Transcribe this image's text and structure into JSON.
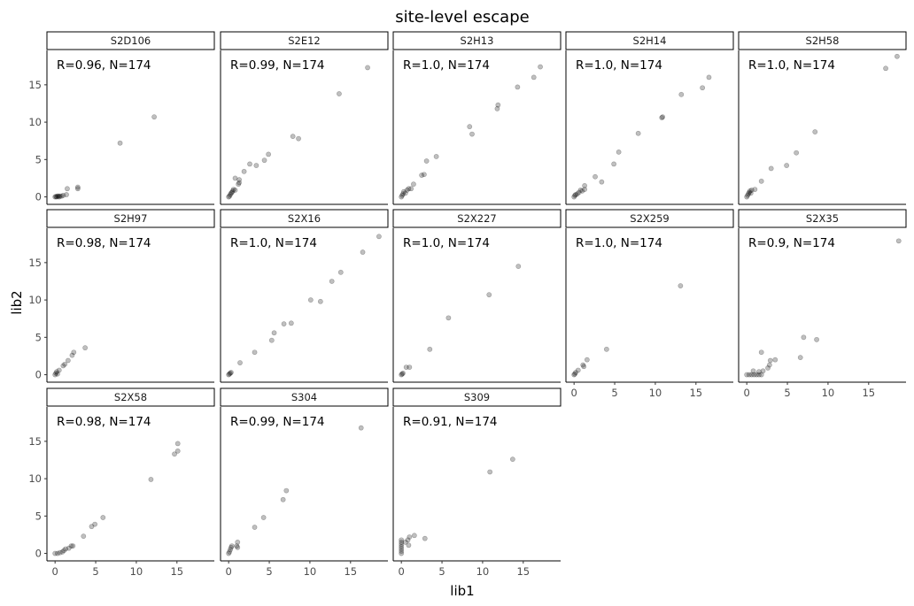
{
  "chart_data": {
    "type": "scatter",
    "title": "site-level escape",
    "xlabel": "lib1",
    "ylabel": "lib2",
    "xlim": [
      -1,
      19.6
    ],
    "ylim": [
      -1,
      19.6
    ],
    "xticks": [
      0,
      5,
      10,
      15
    ],
    "yticks": [
      0,
      5,
      10,
      15
    ],
    "grid": false,
    "legend": "none",
    "point_color": "#000000",
    "point_opacity": 0.25,
    "panels": [
      {
        "name": "S2D106",
        "annotation": "R=0.96, N=174",
        "points": [
          [
            0,
            0
          ],
          [
            0.2,
            0
          ],
          [
            0.4,
            0.1
          ],
          [
            0.6,
            0.1
          ],
          [
            0.8,
            0.1
          ],
          [
            1.0,
            0.2
          ],
          [
            0.3,
            0.1
          ],
          [
            0.5,
            0
          ],
          [
            0.1,
            0.05
          ],
          [
            1.4,
            0.3
          ],
          [
            1.5,
            1.1
          ],
          [
            2.8,
            1.1
          ],
          [
            2.8,
            1.3
          ],
          [
            8.0,
            7.2
          ],
          [
            12.2,
            10.7
          ]
        ]
      },
      {
        "name": "S2E12",
        "annotation": "R=0.99, N=174",
        "points": [
          [
            0,
            0
          ],
          [
            0.1,
            0.1
          ],
          [
            0.2,
            0.3
          ],
          [
            0.3,
            0.5
          ],
          [
            0.4,
            0.6
          ],
          [
            0.5,
            0.8
          ],
          [
            0.6,
            1.0
          ],
          [
            0.8,
            0.9
          ],
          [
            0.8,
            2.5
          ],
          [
            1.3,
            2.3
          ],
          [
            1.3,
            1.9
          ],
          [
            1.2,
            1.7
          ],
          [
            1.9,
            3.4
          ],
          [
            2.6,
            4.4
          ],
          [
            3.4,
            4.2
          ],
          [
            4.4,
            4.9
          ],
          [
            4.9,
            5.7
          ],
          [
            7.9,
            8.1
          ],
          [
            8.6,
            7.8
          ],
          [
            13.6,
            13.8
          ],
          [
            17.1,
            17.3
          ]
        ]
      },
      {
        "name": "S2H13",
        "annotation": "R=1.0, N=174",
        "points": [
          [
            0,
            0
          ],
          [
            0.1,
            0.2
          ],
          [
            0.2,
            0.4
          ],
          [
            0.3,
            0.7
          ],
          [
            0.5,
            0.5
          ],
          [
            0.7,
            0.9
          ],
          [
            0.9,
            1.1
          ],
          [
            1.2,
            1.1
          ],
          [
            1.5,
            1.7
          ],
          [
            2.5,
            2.9
          ],
          [
            2.8,
            3.0
          ],
          [
            3.1,
            4.8
          ],
          [
            4.3,
            5.4
          ],
          [
            8.4,
            9.4
          ],
          [
            8.7,
            8.4
          ],
          [
            11.8,
            11.8
          ],
          [
            11.9,
            12.3
          ],
          [
            14.3,
            14.7
          ],
          [
            16.3,
            16.0
          ],
          [
            17.1,
            17.4
          ]
        ]
      },
      {
        "name": "S2H14",
        "annotation": "R=1.0, N=174",
        "points": [
          [
            0,
            0
          ],
          [
            0.1,
            0.2
          ],
          [
            0.2,
            0.3
          ],
          [
            0.4,
            0.4
          ],
          [
            0.6,
            0.6
          ],
          [
            0.8,
            0.9
          ],
          [
            1.0,
            0.8
          ],
          [
            1.3,
            1.0
          ],
          [
            1.3,
            1.5
          ],
          [
            2.6,
            2.7
          ],
          [
            3.4,
            2.0
          ],
          [
            4.9,
            4.4
          ],
          [
            5.5,
            6.0
          ],
          [
            7.9,
            8.5
          ],
          [
            10.8,
            10.6
          ],
          [
            10.9,
            10.7
          ],
          [
            13.2,
            13.7
          ],
          [
            15.8,
            14.6
          ],
          [
            16.6,
            16.0
          ]
        ]
      },
      {
        "name": "S2H58",
        "annotation": "R=1.0, N=174",
        "points": [
          [
            0,
            0
          ],
          [
            0.1,
            0.2
          ],
          [
            0.2,
            0.4
          ],
          [
            0.3,
            0.6
          ],
          [
            0.4,
            0.8
          ],
          [
            0.5,
            0.5
          ],
          [
            0.6,
            0.9
          ],
          [
            1.0,
            1.0
          ],
          [
            1.8,
            2.1
          ],
          [
            3.0,
            3.8
          ],
          [
            4.9,
            4.2
          ],
          [
            6.1,
            5.9
          ],
          [
            8.4,
            8.7
          ],
          [
            17.1,
            17.2
          ],
          [
            18.5,
            18.8
          ]
        ]
      },
      {
        "name": "S2H97",
        "annotation": "R=0.98, N=174",
        "points": [
          [
            0,
            0
          ],
          [
            0.1,
            0.2
          ],
          [
            0.2,
            0.4
          ],
          [
            0.3,
            0.1
          ],
          [
            0.5,
            0.6
          ],
          [
            1.0,
            1.2
          ],
          [
            1.2,
            1.4
          ],
          [
            1.6,
            1.9
          ],
          [
            2.1,
            2.6
          ],
          [
            2.3,
            3.0
          ],
          [
            3.7,
            3.6
          ]
        ]
      },
      {
        "name": "S2X16",
        "annotation": "R=1.0, N=174",
        "points": [
          [
            0,
            0
          ],
          [
            0.1,
            0.1
          ],
          [
            0.2,
            0.2
          ],
          [
            0.3,
            0.3
          ],
          [
            1.4,
            1.6
          ],
          [
            3.2,
            3.0
          ],
          [
            5.3,
            4.6
          ],
          [
            5.6,
            5.6
          ],
          [
            6.8,
            6.8
          ],
          [
            7.7,
            6.9
          ],
          [
            10.1,
            10.0
          ],
          [
            11.3,
            9.8
          ],
          [
            12.7,
            12.5
          ],
          [
            13.8,
            13.7
          ],
          [
            16.5,
            16.4
          ],
          [
            18.5,
            18.5
          ]
        ]
      },
      {
        "name": "S2X227",
        "annotation": "R=1.0, N=174",
        "points": [
          [
            0,
            0
          ],
          [
            0.1,
            0.1
          ],
          [
            0.2,
            0.2
          ],
          [
            0.6,
            1.0
          ],
          [
            1.0,
            1.0
          ],
          [
            3.5,
            3.4
          ],
          [
            5.8,
            7.6
          ],
          [
            10.8,
            10.7
          ],
          [
            14.4,
            14.5
          ]
        ]
      },
      {
        "name": "S2X259",
        "annotation": "R=1.0, N=174",
        "points": [
          [
            0,
            0
          ],
          [
            0.1,
            0.1
          ],
          [
            0.2,
            0.3
          ],
          [
            0.5,
            0.6
          ],
          [
            1.1,
            1.3
          ],
          [
            1.2,
            1.1
          ],
          [
            1.6,
            2.0
          ],
          [
            4.0,
            3.4
          ],
          [
            13.1,
            11.9
          ]
        ]
      },
      {
        "name": "S2X35",
        "annotation": "R=0.9, N=174",
        "points": [
          [
            0,
            0
          ],
          [
            0.3,
            0
          ],
          [
            0.6,
            0
          ],
          [
            0.9,
            0
          ],
          [
            1.2,
            0
          ],
          [
            1.5,
            0
          ],
          [
            1.8,
            0
          ],
          [
            0.8,
            0.5
          ],
          [
            1.5,
            0.4
          ],
          [
            2.0,
            0.5
          ],
          [
            2.6,
            0.9
          ],
          [
            2.8,
            1.3
          ],
          [
            2.9,
            1.9
          ],
          [
            3.5,
            2.0
          ],
          [
            1.8,
            3.0
          ],
          [
            6.6,
            2.3
          ],
          [
            7.0,
            5.0
          ],
          [
            8.6,
            4.7
          ],
          [
            18.7,
            17.9
          ]
        ]
      },
      {
        "name": "S2X58",
        "annotation": "R=0.98, N=174",
        "points": [
          [
            0,
            0
          ],
          [
            0.3,
            0
          ],
          [
            0.6,
            0.1
          ],
          [
            0.9,
            0.2
          ],
          [
            1.1,
            0.4
          ],
          [
            1.3,
            0.6
          ],
          [
            1.7,
            0.7
          ],
          [
            2.0,
            1.0
          ],
          [
            2.2,
            1.0
          ],
          [
            3.5,
            2.3
          ],
          [
            4.5,
            3.6
          ],
          [
            4.9,
            3.9
          ],
          [
            5.9,
            4.8
          ],
          [
            11.8,
            9.9
          ],
          [
            14.7,
            13.3
          ],
          [
            15.1,
            13.7
          ],
          [
            15.1,
            14.7
          ]
        ]
      },
      {
        "name": "S304",
        "annotation": "R=0.99, N=174",
        "points": [
          [
            0,
            0
          ],
          [
            0.1,
            0.2
          ],
          [
            0.2,
            0.5
          ],
          [
            0.3,
            0.8
          ],
          [
            0.4,
            1.0
          ],
          [
            1.0,
            1.0
          ],
          [
            1.1,
            0.8
          ],
          [
            1.1,
            1.5
          ],
          [
            3.2,
            3.5
          ],
          [
            4.3,
            4.8
          ],
          [
            6.7,
            7.2
          ],
          [
            7.1,
            8.4
          ],
          [
            16.3,
            16.8
          ]
        ]
      },
      {
        "name": "S309",
        "annotation": "R=0.91, N=174",
        "points": [
          [
            0,
            0
          ],
          [
            0,
            0.3
          ],
          [
            0,
            0.6
          ],
          [
            0,
            0.9
          ],
          [
            0,
            1.2
          ],
          [
            0,
            1.5
          ],
          [
            0,
            1.8
          ],
          [
            0.5,
            1.5
          ],
          [
            0.8,
            1.8
          ],
          [
            0.9,
            1.1
          ],
          [
            1.0,
            2.2
          ],
          [
            1.6,
            2.4
          ],
          [
            2.9,
            2.0
          ],
          [
            10.9,
            10.9
          ],
          [
            13.7,
            12.6
          ]
        ]
      }
    ]
  }
}
